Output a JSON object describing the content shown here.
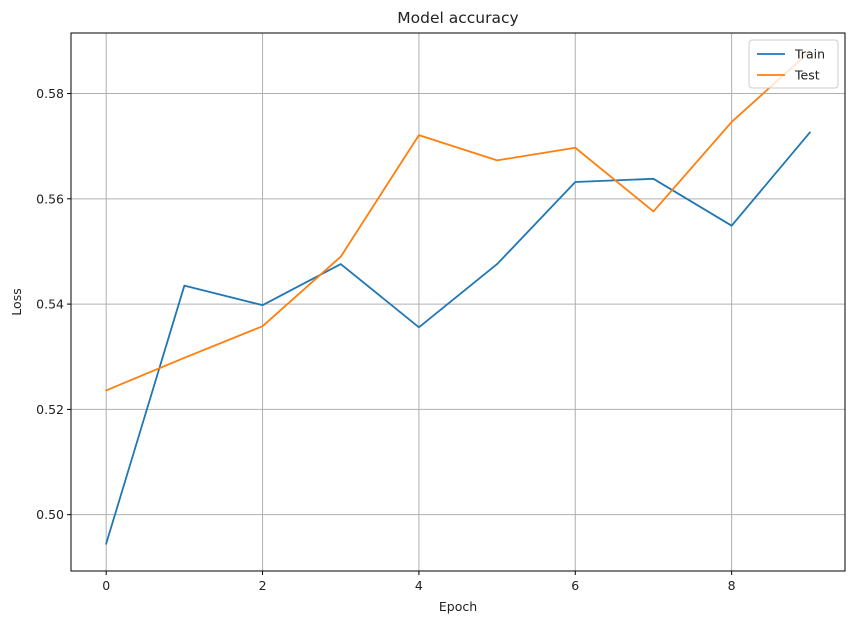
{
  "chart_data": {
    "type": "line",
    "title": "Model accuracy",
    "xlabel": "Epoch",
    "ylabel": "Loss",
    "xlim": [
      -0.45,
      9.45
    ],
    "ylim": [
      0.4893,
      0.5915
    ],
    "xticks": [
      0,
      2,
      4,
      6,
      8
    ],
    "yticks": [
      0.5,
      0.52,
      0.54,
      0.56,
      0.58
    ],
    "x": [
      0,
      1,
      2,
      3,
      4,
      5,
      6,
      7,
      8,
      9
    ],
    "grid": true,
    "legend_position": "top-right",
    "series": [
      {
        "name": "Train",
        "color": "#1f77b4",
        "values": [
          0.4945,
          0.5435,
          0.5398,
          0.5476,
          0.5356,
          0.5476,
          0.5632,
          0.5638,
          0.5549,
          0.5726
        ]
      },
      {
        "name": "Test",
        "color": "#ff7f0e",
        "values": [
          0.5236,
          0.5298,
          0.5358,
          0.549,
          0.5721,
          0.5673,
          0.5697,
          0.5576,
          0.5746,
          0.588
        ]
      }
    ]
  }
}
